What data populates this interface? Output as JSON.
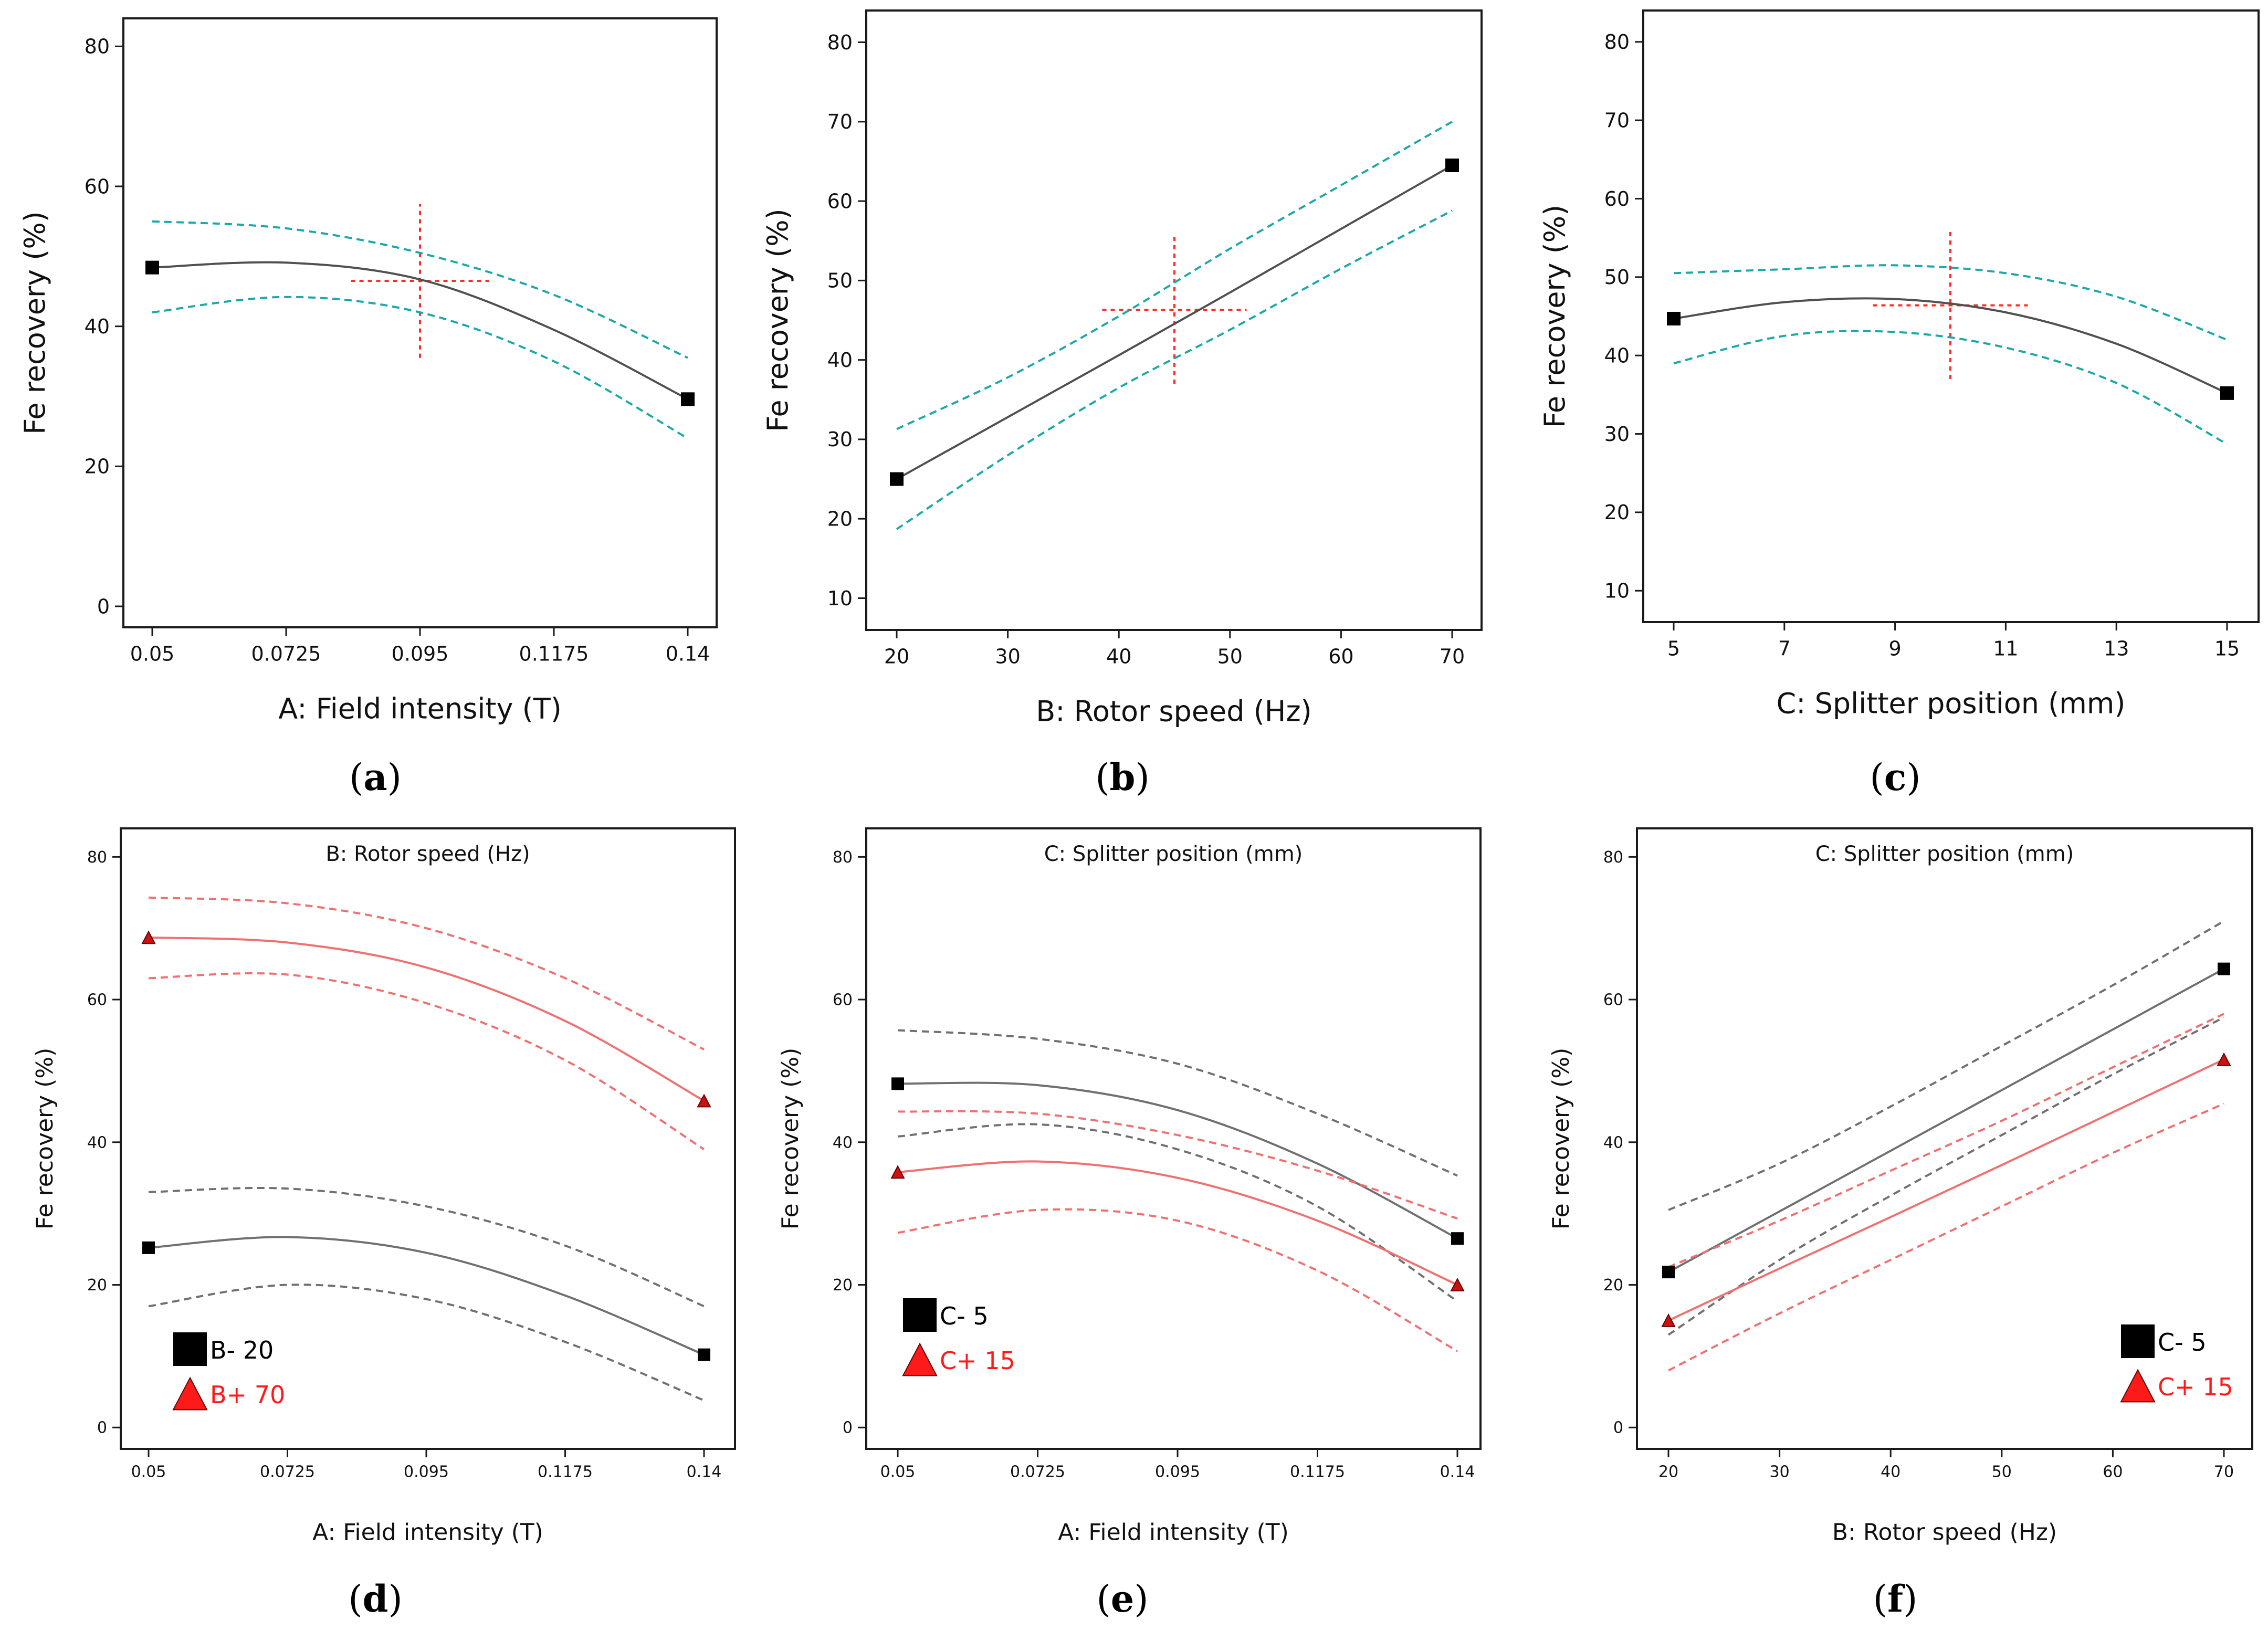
{
  "colors": {
    "main": "#505050",
    "ci_top": "#1aa8a8",
    "marker": "#000000",
    "crosshair": "#ff2a2a",
    "red": "#f07070",
    "red_marker": "#cc1111",
    "gray": "#707070",
    "legend_red": "#ff1a1a"
  },
  "chart_data": [
    {
      "id": "a",
      "panel_label": "a",
      "type": "line",
      "title": "",
      "xlabel": "A: Field intensity (T)",
      "ylabel": "Fe recovery (%)",
      "xlim": [
        0.05,
        0.14
      ],
      "ylim": [
        -3,
        84
      ],
      "xticks": [
        0.05,
        0.0725,
        0.095,
        0.1175,
        0.14
      ],
      "xtick_labels": [
        "0.05",
        "0.0725",
        "0.095",
        "0.1175",
        "0.14"
      ],
      "yticks": [
        0,
        20,
        40,
        60,
        80
      ],
      "ytick_labels": [
        "0",
        "20",
        "40",
        "60",
        "80"
      ],
      "series": [
        {
          "name": "Prediction",
          "style": "solid",
          "color": "main",
          "x": [
            0.05,
            0.0725,
            0.095,
            0.1175,
            0.14
          ],
          "y": [
            48.4,
            49.1,
            46.7,
            39.5,
            29.6
          ]
        },
        {
          "name": "Upper 95% CI",
          "style": "dashed",
          "color": "ci_top",
          "x": [
            0.05,
            0.0725,
            0.095,
            0.1175,
            0.14
          ],
          "y": [
            55.0,
            54.0,
            50.5,
            44.5,
            35.5
          ]
        },
        {
          "name": "Lower 95% CI",
          "style": "dashed",
          "color": "ci_top",
          "x": [
            0.05,
            0.0725,
            0.095,
            0.1175,
            0.14
          ],
          "y": [
            42.0,
            44.2,
            42.0,
            35.0,
            24.0
          ]
        }
      ],
      "markers": [
        {
          "x": 0.05,
          "y": 48.4,
          "shape": "square",
          "color": "marker"
        },
        {
          "x": 0.14,
          "y": 29.6,
          "shape": "square",
          "color": "marker"
        }
      ],
      "crosshair": {
        "x": 0.095,
        "y": 46.5,
        "x_range": [
          0.0834,
          0.1066
        ],
        "y_range": [
          35.5,
          57.5
        ]
      }
    },
    {
      "id": "b",
      "panel_label": "b",
      "type": "line",
      "title": "",
      "xlabel": "B: Rotor speed (Hz)",
      "ylabel": "Fe recovery (%)",
      "xlim": [
        20,
        70
      ],
      "ylim": [
        6,
        84
      ],
      "xticks": [
        20,
        30,
        40,
        50,
        60,
        70
      ],
      "xtick_labels": [
        "20",
        "30",
        "40",
        "50",
        "60",
        "70"
      ],
      "yticks": [
        10,
        20,
        30,
        40,
        50,
        60,
        70,
        80
      ],
      "ytick_labels": [
        "10",
        "20",
        "30",
        "40",
        "50",
        "60",
        "70",
        "80"
      ],
      "series": [
        {
          "name": "Prediction",
          "style": "solid",
          "color": "main",
          "x": [
            20,
            30,
            40,
            50,
            60,
            70
          ],
          "y": [
            25.0,
            32.8,
            40.6,
            48.5,
            56.5,
            64.5
          ]
        },
        {
          "name": "Upper 95% CI",
          "style": "dashed",
          "color": "ci_top",
          "x": [
            20,
            30,
            40,
            50,
            60,
            70
          ],
          "y": [
            31.3,
            37.8,
            45.5,
            54.0,
            62.0,
            70.0
          ]
        },
        {
          "name": "Lower 95% CI",
          "style": "dashed",
          "color": "ci_top",
          "x": [
            20,
            30,
            40,
            50,
            60,
            70
          ],
          "y": [
            18.7,
            28.0,
            36.5,
            43.8,
            51.5,
            58.8
          ]
        }
      ],
      "markers": [
        {
          "x": 20,
          "y": 25.0,
          "shape": "square",
          "color": "marker"
        },
        {
          "x": 70,
          "y": 64.5,
          "shape": "square",
          "color": "marker"
        }
      ],
      "crosshair": {
        "x": 45,
        "y": 46.3,
        "x_range": [
          38.5,
          51.5
        ],
        "y_range": [
          37.0,
          56.0
        ]
      }
    },
    {
      "id": "c",
      "panel_label": "c",
      "type": "line",
      "title": "",
      "xlabel": "C: Splitter position (mm)",
      "ylabel": "Fe recovery (%)",
      "xlim": [
        5,
        15
      ],
      "ylim": [
        6,
        84
      ],
      "xticks": [
        5,
        7,
        9,
        11,
        13,
        15
      ],
      "xtick_labels": [
        "5",
        "7",
        "9",
        "11",
        "13",
        "15"
      ],
      "yticks": [
        10,
        20,
        30,
        40,
        50,
        60,
        70,
        80
      ],
      "ytick_labels": [
        "10",
        "20",
        "30",
        "40",
        "50",
        "60",
        "70",
        "80"
      ],
      "series": [
        {
          "name": "Prediction",
          "style": "solid",
          "color": "main",
          "x": [
            5,
            7,
            9,
            11,
            13,
            15
          ],
          "y": [
            44.7,
            46.8,
            47.2,
            45.5,
            41.5,
            35.2
          ]
        },
        {
          "name": "Upper 95% CI",
          "style": "dashed",
          "color": "ci_top",
          "x": [
            5,
            7,
            9,
            11,
            13,
            15
          ],
          "y": [
            50.5,
            51.0,
            51.5,
            50.5,
            47.5,
            42.0
          ]
        },
        {
          "name": "Lower 95% CI",
          "style": "dashed",
          "color": "ci_top",
          "x": [
            5,
            7,
            9,
            11,
            13,
            15
          ],
          "y": [
            39.0,
            42.5,
            43.0,
            41.0,
            36.5,
            28.7
          ]
        }
      ],
      "markers": [
        {
          "x": 5,
          "y": 44.7,
          "shape": "square",
          "color": "marker"
        },
        {
          "x": 15,
          "y": 35.2,
          "shape": "square",
          "color": "marker"
        }
      ],
      "crosshair": {
        "x": 10,
        "y": 46.4,
        "x_range": [
          8.6,
          11.4
        ],
        "y_range": [
          37.0,
          56.0
        ]
      }
    },
    {
      "id": "d",
      "panel_label": "d",
      "type": "line",
      "title": "B: Rotor speed (Hz)",
      "xlabel": "A: Field intensity (T)",
      "ylabel": "Fe recovery (%)",
      "xlim": [
        0.05,
        0.14
      ],
      "ylim": [
        -3,
        84
      ],
      "xticks": [
        0.05,
        0.0725,
        0.095,
        0.1175,
        0.14
      ],
      "xtick_labels": [
        "0.05",
        "0.0725",
        "0.095",
        "0.1175",
        "0.14"
      ],
      "yticks": [
        0,
        20,
        40,
        60,
        80
      ],
      "ytick_labels": [
        "0",
        "20",
        "40",
        "60",
        "80"
      ],
      "series": [
        {
          "name": "B+ 70",
          "style": "solid",
          "color": "red",
          "x": [
            0.05,
            0.0725,
            0.095,
            0.1175,
            0.14
          ],
          "y": [
            68.7,
            68.0,
            64.5,
            57.0,
            45.8
          ]
        },
        {
          "name": "B+ 70 upper CI",
          "style": "dashed",
          "color": "red",
          "x": [
            0.05,
            0.0725,
            0.095,
            0.1175,
            0.14
          ],
          "y": [
            74.3,
            73.5,
            70.0,
            63.0,
            53.0
          ]
        },
        {
          "name": "B+ 70 lower CI",
          "style": "dashed",
          "color": "red",
          "x": [
            0.05,
            0.0725,
            0.095,
            0.1175,
            0.14
          ],
          "y": [
            63.0,
            63.5,
            59.5,
            51.5,
            39.0
          ]
        },
        {
          "name": "B- 20",
          "style": "solid",
          "color": "gray",
          "x": [
            0.05,
            0.0725,
            0.095,
            0.1175,
            0.14
          ],
          "y": [
            25.2,
            26.7,
            24.5,
            18.5,
            10.2
          ]
        },
        {
          "name": "B- 20 upper CI",
          "style": "dashed",
          "color": "gray",
          "x": [
            0.05,
            0.0725,
            0.095,
            0.1175,
            0.14
          ],
          "y": [
            33.0,
            33.5,
            31.0,
            25.5,
            17.0
          ]
        },
        {
          "name": "B- 20 lower CI",
          "style": "dashed",
          "color": "gray",
          "x": [
            0.05,
            0.0725,
            0.095,
            0.1175,
            0.14
          ],
          "y": [
            17.0,
            20.0,
            18.0,
            12.0,
            3.8
          ]
        }
      ],
      "markers": [
        {
          "x": 0.05,
          "y": 68.7,
          "shape": "triangle",
          "color": "red_marker"
        },
        {
          "x": 0.14,
          "y": 45.8,
          "shape": "triangle",
          "color": "red_marker"
        },
        {
          "x": 0.05,
          "y": 25.2,
          "shape": "square",
          "color": "marker"
        },
        {
          "x": 0.14,
          "y": 10.2,
          "shape": "square",
          "color": "marker"
        }
      ],
      "legend": {
        "placement": "bottom-left",
        "entries": [
          {
            "label": "B- 20",
            "shape": "square",
            "color": "marker"
          },
          {
            "label": "B+ 70",
            "shape": "triangle",
            "color": "legend_red"
          }
        ]
      }
    },
    {
      "id": "e",
      "panel_label": "e",
      "type": "line",
      "title": "C: Splitter position (mm)",
      "xlabel": "A: Field intensity (T)",
      "ylabel": "Fe recovery (%)",
      "xlim": [
        0.05,
        0.14
      ],
      "ylim": [
        -3,
        84
      ],
      "xticks": [
        0.05,
        0.0725,
        0.095,
        0.1175,
        0.14
      ],
      "xtick_labels": [
        "0.05",
        "0.0725",
        "0.095",
        "0.1175",
        "0.14"
      ],
      "yticks": [
        0,
        20,
        40,
        60,
        80
      ],
      "ytick_labels": [
        "0",
        "20",
        "40",
        "60",
        "80"
      ],
      "series": [
        {
          "name": "C- 5",
          "style": "solid",
          "color": "gray",
          "x": [
            0.05,
            0.0725,
            0.095,
            0.1175,
            0.14
          ],
          "y": [
            48.2,
            48.0,
            44.5,
            37.0,
            26.5
          ]
        },
        {
          "name": "C- 5 upper CI",
          "style": "dashed",
          "color": "gray",
          "x": [
            0.05,
            0.0725,
            0.095,
            0.1175,
            0.14
          ],
          "y": [
            55.7,
            54.5,
            51.0,
            44.0,
            35.3
          ]
        },
        {
          "name": "C- 5 lower CI",
          "style": "dashed",
          "color": "gray",
          "x": [
            0.05,
            0.0725,
            0.095,
            0.1175,
            0.14
          ],
          "y": [
            40.8,
            42.5,
            39.0,
            31.0,
            17.7
          ]
        },
        {
          "name": "C+ 15",
          "style": "solid",
          "color": "red",
          "x": [
            0.05,
            0.0725,
            0.095,
            0.1175,
            0.14
          ],
          "y": [
            35.8,
            37.3,
            35.0,
            29.0,
            20.0
          ]
        },
        {
          "name": "C+ 15 upper CI",
          "style": "dashed",
          "color": "red",
          "x": [
            0.05,
            0.0725,
            0.095,
            0.1175,
            0.14
          ],
          "y": [
            44.3,
            44.0,
            41.0,
            36.0,
            29.3
          ]
        },
        {
          "name": "C+ 15 lower CI",
          "style": "dashed",
          "color": "red",
          "x": [
            0.05,
            0.0725,
            0.095,
            0.1175,
            0.14
          ],
          "y": [
            27.3,
            30.5,
            29.0,
            22.0,
            10.7
          ]
        }
      ],
      "markers": [
        {
          "x": 0.05,
          "y": 48.2,
          "shape": "square",
          "color": "marker"
        },
        {
          "x": 0.14,
          "y": 26.5,
          "shape": "square",
          "color": "marker"
        },
        {
          "x": 0.05,
          "y": 35.8,
          "shape": "triangle",
          "color": "red_marker"
        },
        {
          "x": 0.14,
          "y": 20.0,
          "shape": "triangle",
          "color": "red_marker"
        }
      ],
      "legend": {
        "placement": "bottom-left",
        "entries": [
          {
            "label": "C- 5",
            "shape": "square",
            "color": "marker"
          },
          {
            "label": "C+ 15",
            "shape": "triangle",
            "color": "legend_red"
          }
        ]
      }
    },
    {
      "id": "f",
      "panel_label": "f",
      "type": "line",
      "title": "C: Splitter position (mm)",
      "xlabel": "B: Rotor speed (Hz)",
      "ylabel": "Fe recovery (%)",
      "xlim": [
        20,
        70
      ],
      "ylim": [
        -3,
        84
      ],
      "xticks": [
        20,
        30,
        40,
        50,
        60,
        70
      ],
      "xtick_labels": [
        "20",
        "30",
        "40",
        "50",
        "60",
        "70"
      ],
      "yticks": [
        0,
        20,
        40,
        60,
        80
      ],
      "ytick_labels": [
        "0",
        "20",
        "40",
        "60",
        "80"
      ],
      "series": [
        {
          "name": "C- 5",
          "style": "solid",
          "color": "gray",
          "x": [
            20,
            30,
            40,
            50,
            60,
            70
          ],
          "y": [
            21.8,
            30.3,
            38.8,
            47.3,
            55.8,
            64.3
          ]
        },
        {
          "name": "C- 5 upper CI",
          "style": "dashed",
          "color": "gray",
          "x": [
            20,
            30,
            40,
            50,
            60,
            70
          ],
          "y": [
            30.5,
            37.0,
            45.0,
            53.5,
            62.0,
            71.0
          ]
        },
        {
          "name": "C- 5 lower CI",
          "style": "dashed",
          "color": "gray",
          "x": [
            20,
            30,
            40,
            50,
            60,
            70
          ],
          "y": [
            13.0,
            23.5,
            32.5,
            41.0,
            49.5,
            57.5
          ]
        },
        {
          "name": "C+ 15",
          "style": "solid",
          "color": "red",
          "x": [
            20,
            30,
            40,
            50,
            60,
            70
          ],
          "y": [
            15.0,
            22.3,
            29.5,
            36.8,
            44.2,
            51.6
          ]
        },
        {
          "name": "C+ 15 upper CI",
          "style": "dashed",
          "color": "red",
          "x": [
            20,
            30,
            40,
            50,
            60,
            70
          ],
          "y": [
            22.5,
            29.0,
            36.0,
            43.0,
            50.5,
            58.0
          ]
        },
        {
          "name": "C+ 15 lower CI",
          "style": "dashed",
          "color": "red",
          "x": [
            20,
            30,
            40,
            50,
            60,
            70
          ],
          "y": [
            8.0,
            16.0,
            23.5,
            31.0,
            38.5,
            45.4
          ]
        }
      ],
      "markers": [
        {
          "x": 20,
          "y": 21.8,
          "shape": "square",
          "color": "marker"
        },
        {
          "x": 70,
          "y": 64.3,
          "shape": "square",
          "color": "marker"
        },
        {
          "x": 20,
          "y": 15.0,
          "shape": "triangle",
          "color": "red_marker"
        },
        {
          "x": 70,
          "y": 51.6,
          "shape": "triangle",
          "color": "red_marker"
        }
      ],
      "legend": {
        "placement": "bottom-right",
        "entries": [
          {
            "label": "C- 5",
            "shape": "square",
            "color": "marker"
          },
          {
            "label": "C+ 15",
            "shape": "triangle",
            "color": "legend_red"
          }
        ]
      }
    }
  ]
}
